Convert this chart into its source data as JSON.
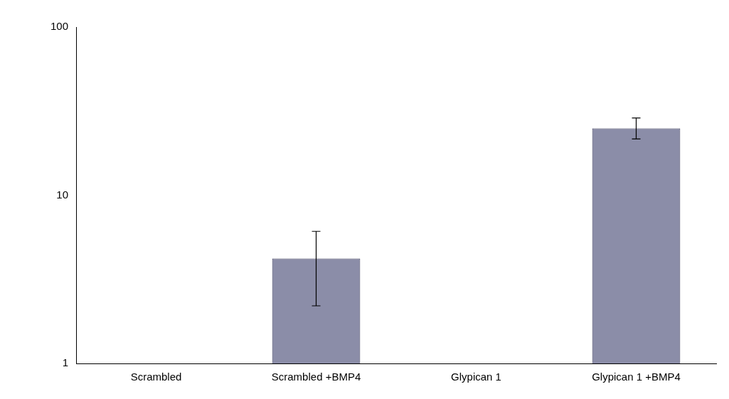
{
  "chart_data": {
    "type": "bar",
    "categories": [
      "Scrambled",
      "Scrambled +BMP4",
      "Glypican 1",
      "Glypican 1 +BMP4"
    ],
    "values": [
      1,
      4.2,
      1,
      25
    ],
    "errors": [
      null,
      [
        2.2,
        6.1
      ],
      null,
      [
        21.6,
        28.8
      ]
    ],
    "color": "#8b8da8",
    "log": true,
    "ylim": [
      1,
      100
    ],
    "yticks": [
      1,
      10,
      100
    ],
    "grid": false,
    "legend": false
  }
}
